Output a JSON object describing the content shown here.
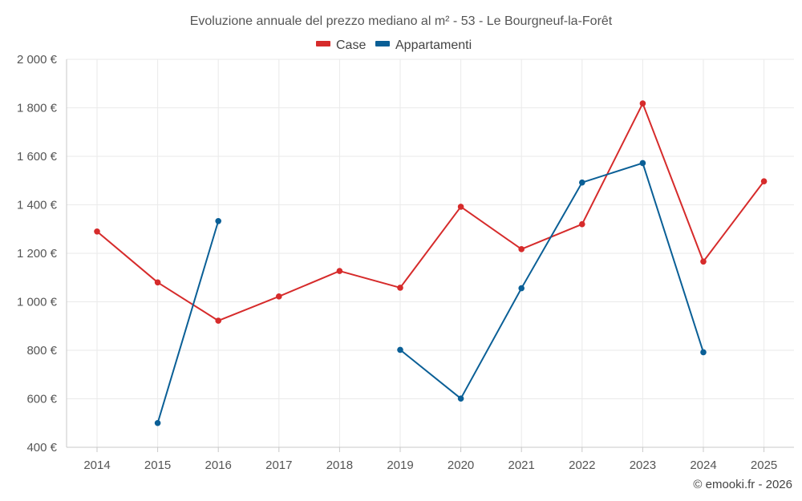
{
  "chart_data": {
    "type": "line",
    "title": "Evoluzione annuale del prezzo mediano al m² - 53 - Le Bourgneuf-la-Forêt",
    "categories": [
      "2014",
      "2015",
      "2016",
      "2017",
      "2018",
      "2019",
      "2020",
      "2021",
      "2022",
      "2023",
      "2024",
      "2025"
    ],
    "y_tick_labels": [
      "2 000 €",
      "1 800 €",
      "1 600 €",
      "1 400 €",
      "1 200 €",
      "1 000 €",
      "800 €",
      "600 €",
      "400 €"
    ],
    "ylim": [
      400,
      2000
    ],
    "y_ticks": [
      2000,
      1800,
      1600,
      1400,
      1200,
      1000,
      800,
      600,
      400
    ],
    "grid": true,
    "legend_position": "top-center",
    "series": [
      {
        "name": "Case",
        "color": "#d62b2b",
        "values": [
          1290,
          1080,
          922,
          1022,
          1127,
          1058,
          1392,
          1217,
          1320,
          1818,
          1166,
          1497
        ]
      },
      {
        "name": "Appartamenti",
        "color": "#0a5f96",
        "values": [
          null,
          500,
          1333,
          null,
          null,
          802,
          601,
          1056,
          1492,
          1572,
          792,
          null
        ]
      }
    ],
    "credit": "© emooki.fr - 2026"
  }
}
